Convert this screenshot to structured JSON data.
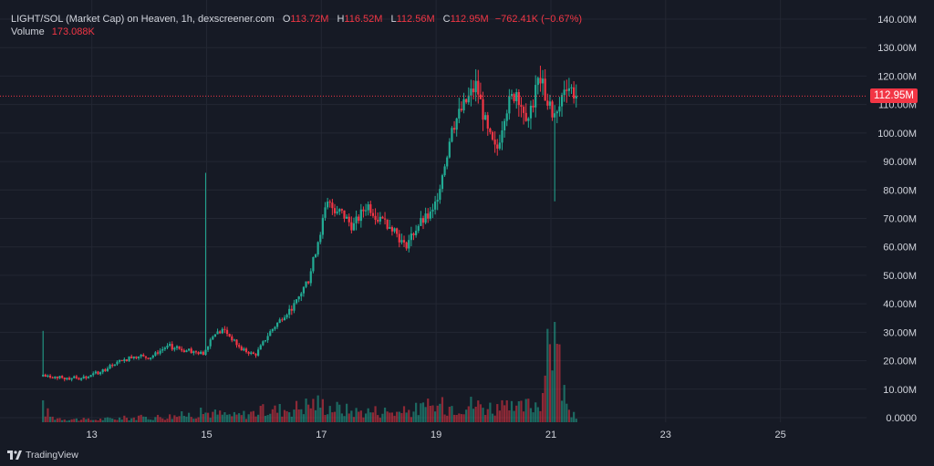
{
  "legend": {
    "title": "LIGHT/SOL (Market Cap) on Heaven, 1h, dexscreener.com",
    "open_label": "O",
    "open": "113.72M",
    "high_label": "H",
    "high": "116.52M",
    "low_label": "L",
    "low": "112.56M",
    "close_label": "C",
    "close": "112.95M",
    "change": "−762.41K (−0.67%)",
    "volume_label": "Volume",
    "volume": "173.088K"
  },
  "last_price_tag": "112.95M",
  "branding": "TradingView",
  "colors": {
    "up": "#22ab94",
    "down": "#f23645",
    "background": "#161a25",
    "grid": "#232733",
    "last_price_line": "#f23645"
  },
  "chart_data": {
    "type": "candlestick",
    "y_axis": {
      "position": "right",
      "range": [
        0,
        140
      ],
      "unit": "M",
      "ticks": [
        "0.0000",
        "10.00M",
        "20.00M",
        "30.00M",
        "40.00M",
        "50.00M",
        "60.00M",
        "70.00M",
        "80.00M",
        "90.00M",
        "100.00M",
        "110.00M",
        "120.00M",
        "130.00M",
        "140.00M"
      ]
    },
    "x_axis": {
      "unit": "day",
      "range": [
        11.4,
        26.5
      ],
      "ticks": [
        "13",
        "15",
        "17",
        "19",
        "21",
        "23",
        "25"
      ]
    },
    "last_close": 112.95,
    "grid": true,
    "series": [
      {
        "name": "Market Cap",
        "points": [
          [
            12.15,
            14.5
          ],
          [
            12.6,
            14.0
          ],
          [
            13.0,
            14.5
          ],
          [
            13.3,
            18.0
          ],
          [
            13.7,
            22.0
          ],
          [
            14.0,
            21.0
          ],
          [
            14.3,
            25.0
          ],
          [
            14.6,
            23.5
          ],
          [
            14.95,
            22.5
          ],
          [
            15.1,
            29.0
          ],
          [
            15.3,
            31.0
          ],
          [
            15.6,
            24.0
          ],
          [
            15.85,
            22.0
          ],
          [
            16.1,
            30.0
          ],
          [
            16.35,
            36.0
          ],
          [
            16.55,
            40.0
          ],
          [
            16.8,
            50.0
          ],
          [
            16.95,
            63.0
          ],
          [
            17.1,
            75.0
          ],
          [
            17.35,
            72.0
          ],
          [
            17.55,
            67.0
          ],
          [
            17.8,
            75.0
          ],
          [
            18.0,
            70.0
          ],
          [
            18.25,
            67.0
          ],
          [
            18.45,
            60.0
          ],
          [
            18.7,
            68.0
          ],
          [
            18.95,
            72.0
          ],
          [
            19.1,
            85.0
          ],
          [
            19.3,
            103.0
          ],
          [
            19.5,
            110.0
          ],
          [
            19.7,
            117.0
          ],
          [
            19.9,
            100.0
          ],
          [
            20.05,
            93.0
          ],
          [
            20.2,
            108.0
          ],
          [
            20.4,
            115.0
          ],
          [
            20.6,
            105.0
          ],
          [
            20.8,
            120.0
          ],
          [
            20.95,
            110.0
          ],
          [
            21.1,
            105.0
          ],
          [
            21.25,
            118.0
          ],
          [
            21.45,
            112.95
          ]
        ]
      },
      {
        "name": "Volume",
        "range": [
          0,
          60
        ],
        "points": [
          [
            12.15,
            9.0
          ],
          [
            12.3,
            3.0
          ],
          [
            12.6,
            2.0
          ],
          [
            13.0,
            1.5
          ],
          [
            13.5,
            2.5
          ],
          [
            14.0,
            3.0
          ],
          [
            14.5,
            4.0
          ],
          [
            15.0,
            6.0
          ],
          [
            15.5,
            4.0
          ],
          [
            16.0,
            7.0
          ],
          [
            16.5,
            8.5
          ],
          [
            16.9,
            12.0
          ],
          [
            17.2,
            9.0
          ],
          [
            17.6,
            6.5
          ],
          [
            18.0,
            7.0
          ],
          [
            18.4,
            6.0
          ],
          [
            18.8,
            9.0
          ],
          [
            19.2,
            10.0
          ],
          [
            19.6,
            11.0
          ],
          [
            20.0,
            9.0
          ],
          [
            20.4,
            8.0
          ],
          [
            20.8,
            12.5
          ],
          [
            21.05,
            55.0
          ],
          [
            21.3,
            5.0
          ],
          [
            21.5,
            3.0
          ]
        ]
      }
    ]
  }
}
